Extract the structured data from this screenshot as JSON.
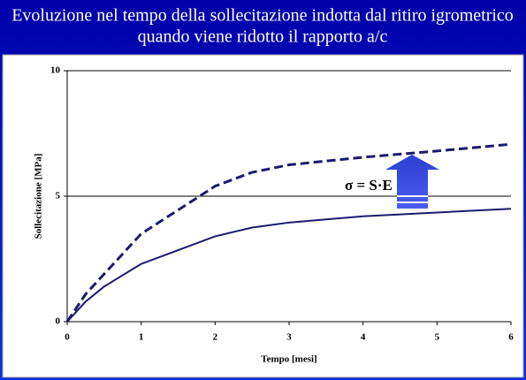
{
  "chart_data": {
    "type": "line",
    "title": [
      "Evoluzione nel tempo della sollecitazione indotta dal ritiro igrometrico",
      "quando viene ridotto il rapporto a/c"
    ],
    "x_label": "Tempo [mesi]",
    "y_label": "Sollecitazione [MPa]",
    "annotation": "σ = S·E",
    "x": [
      0,
      0.25,
      0.5,
      1,
      1.5,
      2,
      2.5,
      3,
      4,
      5,
      6
    ],
    "series": [
      {
        "color": "#1a1a70",
        "dash": false,
        "values": [
          0,
          0.8,
          1.4,
          2.3,
          2.85,
          3.4,
          3.75,
          3.95,
          4.2,
          4.35,
          4.5
        ]
      },
      {
        "color": "#1a1a70",
        "dash": true,
        "values": [
          0,
          1.1,
          1.9,
          3.5,
          4.45,
          5.4,
          5.95,
          6.25,
          6.55,
          6.8,
          7.07
        ]
      }
    ],
    "xlim": [
      0,
      6
    ],
    "xticks": [
      0,
      1,
      2,
      3,
      4,
      5,
      6
    ],
    "ylim": [
      0,
      10
    ],
    "yticks": [
      0,
      5,
      10
    ],
    "grid": true
  }
}
